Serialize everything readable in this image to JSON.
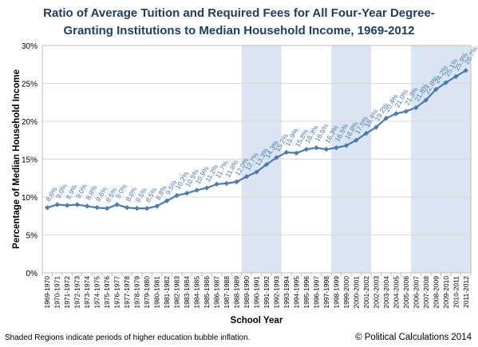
{
  "title_line1": "Ratio of Average Tuition and Required Fees for All Four-Year Degree-",
  "title_line2": "Granting Institutions to Median Household Income, 1969-2012",
  "footnote": "Shaded Regions indicate periods of higher education bubble inflation.",
  "credit": "© Political Calculations 2014",
  "colors": {
    "line": "#4a7ab5",
    "shade": "#dbe5f1",
    "axis_text": "#000000",
    "grid": "#d9d9d9"
  },
  "chart_data": {
    "type": "line",
    "xlabel": "School Year",
    "ylabel": "Percentage of Median Household Income",
    "ylim": [
      0,
      30
    ],
    "yticks": [
      "0%",
      "5%",
      "10%",
      "15%",
      "20%",
      "25%",
      "30%"
    ],
    "grid": true,
    "categories": [
      "1969-1970",
      "1970-1971",
      "1971-1972",
      "1972-1973",
      "1973-1974",
      "1974-1975",
      "1975-1976",
      "1976-1977",
      "1977-1978",
      "1978-1979",
      "1979-1980",
      "1980-1981",
      "1981-1982",
      "1982-1983",
      "1983-1984",
      "1984-1985",
      "1985-1986",
      "1986-1987",
      "1987-1988",
      "1988-1989",
      "1989-1990",
      "1990-1991",
      "1991-1992",
      "1992-1993",
      "1993-1994",
      "1994-1995",
      "1995-1996",
      "1996-1997",
      "1997-1998",
      "1998-1999",
      "1999-2000",
      "2000-2001",
      "2001-2002",
      "2002-2003",
      "2003-2004",
      "2004-2005",
      "2005-2006",
      "2006-2007",
      "2007-2008",
      "2008-2009",
      "2009-2010",
      "2010-2011",
      "2011-2012"
    ],
    "series": [
      {
        "values": [
          8.6,
          9.0,
          8.9,
          9.0,
          8.8,
          8.6,
          8.5,
          9.0,
          8.6,
          8.5,
          8.5,
          8.8,
          9.5,
          10.2,
          10.5,
          10.9,
          11.2,
          11.7,
          11.8,
          12.0,
          12.7,
          13.3,
          14.3,
          15.2,
          15.9,
          15.8,
          16.3,
          16.5,
          16.3,
          16.5,
          16.8,
          17.5,
          18.4,
          19.2,
          20.4,
          21.0,
          21.3,
          21.8,
          22.8,
          24.2,
          25.1,
          25.9,
          26.7
        ],
        "labels": [
          "8.6%",
          "9.0%",
          "8.9%",
          "9.0%",
          "8.8%",
          "8.6%",
          "8.5%",
          "9.0%",
          "8.6%",
          "8.5%",
          "8.5%",
          "8.8%",
          "9.5%",
          "10.2%",
          "10.5%",
          "10.9%",
          "11.2%",
          "11.7%",
          "11.8%",
          "12.0%",
          "12.7%",
          "13.3%",
          "14.3%",
          "15.2%",
          "15.9%",
          "15.8%",
          "16.3%",
          "16.5%",
          "16.3%",
          "16.5%",
          "16.8%",
          "17.5%",
          "18.4%",
          "19.2%",
          "20.4%",
          "21.0%",
          "21.3%",
          "21.8%",
          "22.8%",
          "24.2%",
          "25.1%",
          "25.9%",
          "26.7%"
        ]
      }
    ],
    "shaded_regions": [
      [
        "1989-1990",
        "1992-1993"
      ],
      [
        "1998-1999",
        "2001-2002"
      ],
      [
        "2006-2007",
        "2011-2012"
      ]
    ]
  }
}
